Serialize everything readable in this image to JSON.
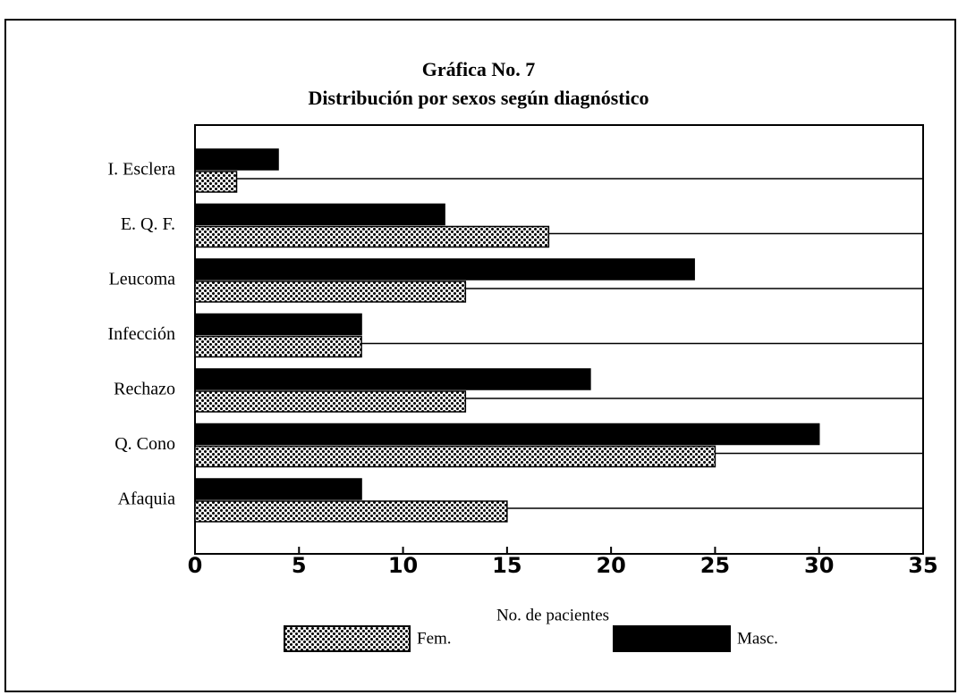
{
  "chart_data": {
    "type": "barh",
    "title": "Gráfica No. 7",
    "subtitle": "Distribución por sexos según diagnóstico",
    "x_label": "No. de pacientes",
    "categories": [
      "I. Esclera",
      "E. Q. F.",
      "Leucoma",
      "Infección",
      "Rechazo",
      "Q. Cono",
      "Afaquia"
    ],
    "series": [
      {
        "name": "Fem.",
        "color": "#000000",
        "pattern": "dots",
        "values": [
          2,
          17,
          13,
          8,
          13,
          25,
          15
        ]
      },
      {
        "name": "Masc.",
        "color": "#000000",
        "values": [
          4,
          12,
          24,
          8,
          19,
          30,
          8
        ]
      }
    ],
    "xlim": [
      0,
      35
    ],
    "xticks": [
      0,
      5,
      10,
      15,
      20,
      25,
      30,
      35
    ]
  }
}
